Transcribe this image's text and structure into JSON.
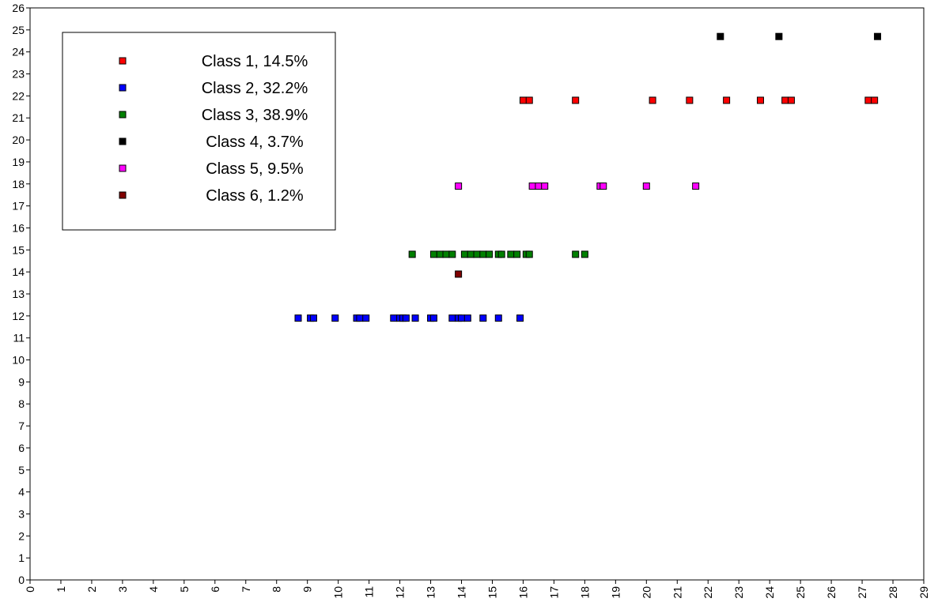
{
  "chart_data": {
    "type": "scatter",
    "title": "",
    "xlabel": "",
    "ylabel": "",
    "xlim": [
      0,
      29
    ],
    "ylim": [
      0,
      26
    ],
    "x_ticks": [
      "0",
      "1",
      "2",
      "3",
      "4",
      "5",
      "6",
      "7",
      "8",
      "9",
      "10",
      "11",
      "12",
      "13",
      "14",
      "15",
      "16",
      "17",
      "18",
      "19",
      "20",
      "21",
      "22",
      "23",
      "24",
      "25",
      "26",
      "27",
      "28",
      "29"
    ],
    "y_ticks": [
      "0",
      "1",
      "2",
      "3",
      "4",
      "5",
      "6",
      "7",
      "8",
      "9",
      "10",
      "11",
      "12",
      "13",
      "14",
      "15",
      "16",
      "17",
      "18",
      "19",
      "20",
      "21",
      "22",
      "23",
      "24",
      "25",
      "26"
    ],
    "grid": false,
    "legend_position": "top-left",
    "series": [
      {
        "name": "Class 1, 14.5%",
        "color": "#ff0000",
        "x": [
          16.0,
          16.2,
          17.7,
          20.2,
          21.4,
          22.6,
          23.7,
          24.5,
          24.7,
          27.2,
          27.4
        ],
        "y": [
          21.8,
          21.8,
          21.8,
          21.8,
          21.8,
          21.8,
          21.8,
          21.8,
          21.8,
          21.8,
          21.8
        ]
      },
      {
        "name": "Class 2, 32.2%",
        "color": "#0000ff",
        "x": [
          8.7,
          9.1,
          9.2,
          9.9,
          10.6,
          10.7,
          10.9,
          11.8,
          12.0,
          12.1,
          12.2,
          12.5,
          13.0,
          13.1,
          13.7,
          13.9,
          14.0,
          14.2,
          14.7,
          15.2,
          15.9
        ],
        "y": [
          11.9,
          11.9,
          11.9,
          11.9,
          11.9,
          11.9,
          11.9,
          11.9,
          11.9,
          11.9,
          11.9,
          11.9,
          11.9,
          11.9,
          11.9,
          11.9,
          11.9,
          11.9,
          11.9,
          11.9,
          11.9
        ]
      },
      {
        "name": "Class 3, 38.9%",
        "color": "#008000",
        "x": [
          12.4,
          13.1,
          13.3,
          13.5,
          13.7,
          14.1,
          14.3,
          14.5,
          14.7,
          14.9,
          15.2,
          15.3,
          15.6,
          15.8,
          16.1,
          16.2,
          17.7,
          18.0
        ],
        "y": [
          14.8,
          14.8,
          14.8,
          14.8,
          14.8,
          14.8,
          14.8,
          14.8,
          14.8,
          14.8,
          14.8,
          14.8,
          14.8,
          14.8,
          14.8,
          14.8,
          14.8,
          14.8
        ]
      },
      {
        "name": "Class 4, 3.7%",
        "color": "#000000",
        "x": [
          22.4,
          24.3,
          27.5
        ],
        "y": [
          24.7,
          24.7,
          24.7
        ]
      },
      {
        "name": "Class 5, 9.5%",
        "color": "#ff00ff",
        "x": [
          13.9,
          16.3,
          16.5,
          16.7,
          18.5,
          18.6,
          20.0,
          21.6
        ],
        "y": [
          17.9,
          17.9,
          17.9,
          17.9,
          17.9,
          17.9,
          17.9,
          17.9
        ]
      },
      {
        "name": "Class 6, 1.2%",
        "color": "#800000",
        "x": [
          13.9
        ],
        "y": [
          13.9
        ]
      }
    ]
  }
}
